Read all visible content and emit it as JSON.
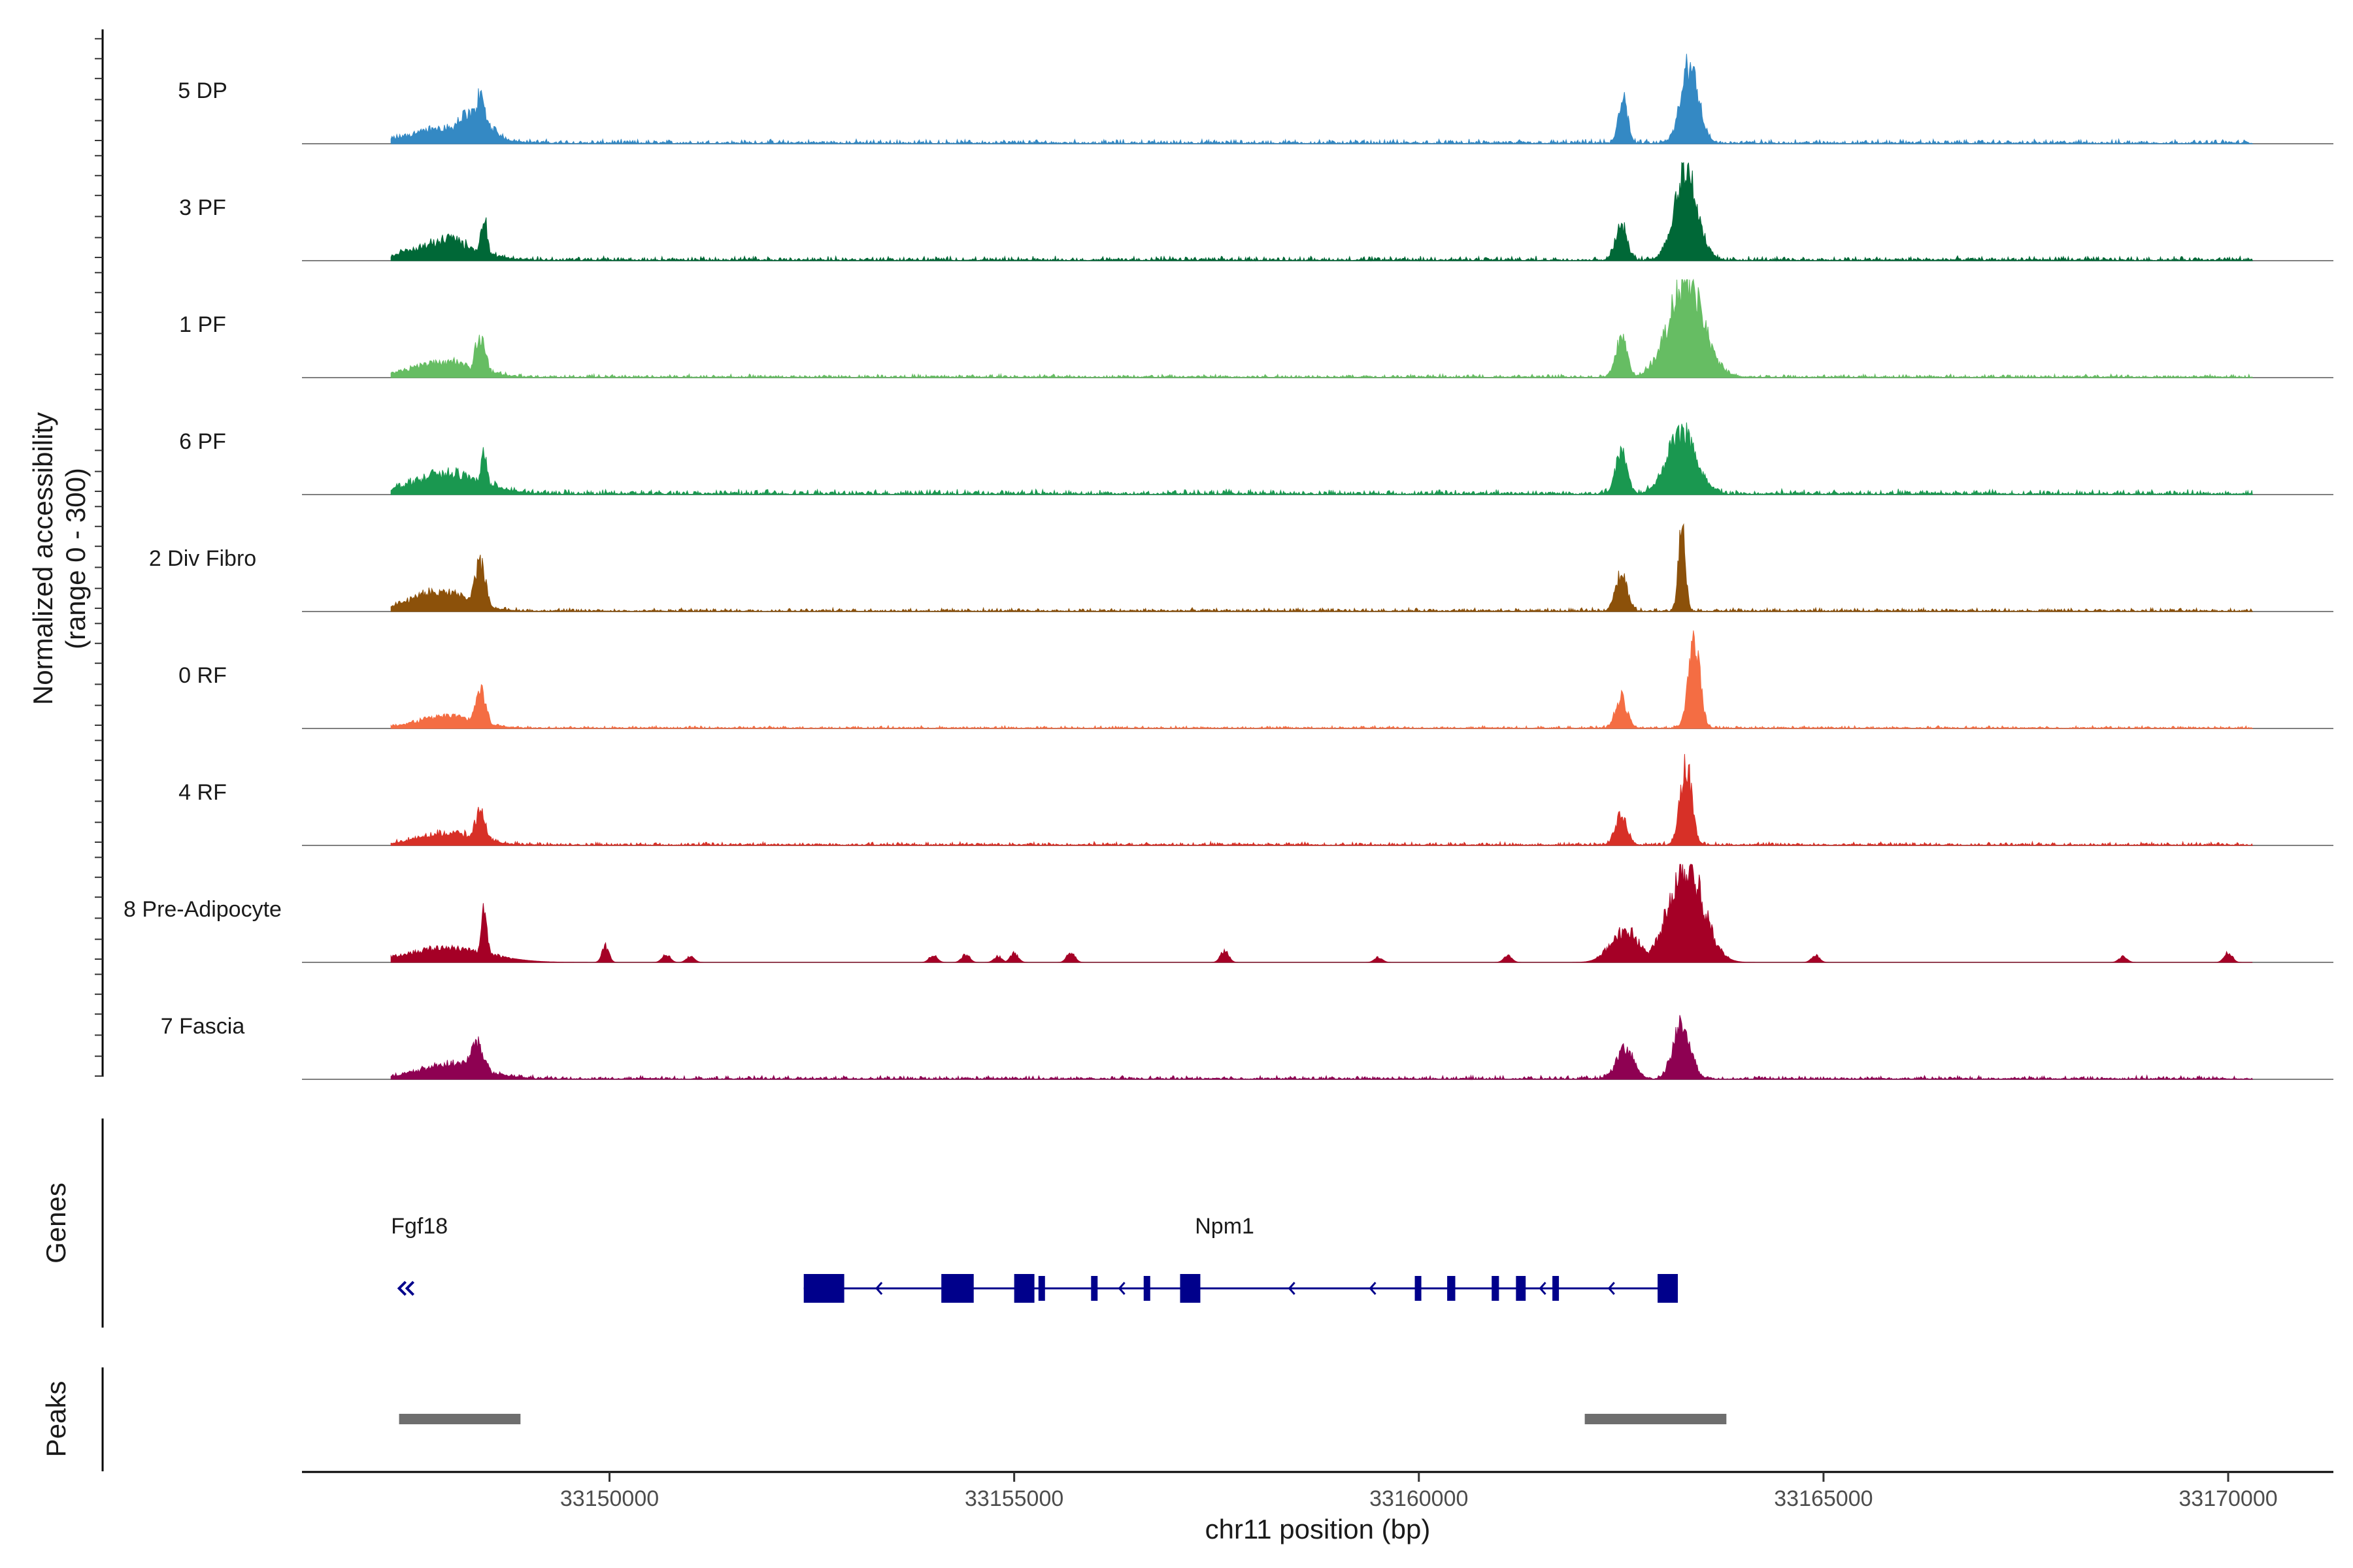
{
  "chart_data": {
    "type": "area",
    "title": "",
    "xlabel": "chr11 position (bp)",
    "ylabel_line1": "Normalized accessibility",
    "ylabel_line2": "(range 0 - 300)",
    "ylim": [
      0,
      300
    ],
    "xlim": [
      33146200,
      33171300
    ],
    "x_ticks": [
      33150000,
      33155000,
      33160000,
      33165000,
      33170000
    ],
    "x_tick_labels": [
      "33150000",
      "33155000",
      "33160000",
      "33165000",
      "33170000"
    ],
    "series": [
      {
        "name": "5 DP",
        "color": "#3489c4",
        "noise": 0.05,
        "peaks": [
          [
            33147400,
            33148600,
            0.15
          ],
          [
            33148000,
            33148600,
            0.3
          ],
          [
            33148300,
            33148500,
            0.48
          ],
          [
            33162450,
            33162600,
            0.48
          ],
          [
            33163200,
            33163500,
            0.8
          ]
        ],
        "spikes": []
      },
      {
        "name": "3 PF",
        "color": "#006837",
        "noise": 0.05,
        "peaks": [
          [
            33147400,
            33148500,
            0.18
          ],
          [
            33147800,
            33148300,
            0.22
          ],
          [
            33148400,
            33148500,
            0.42
          ],
          [
            33162400,
            33162600,
            0.35
          ],
          [
            33163100,
            33163500,
            0.9
          ]
        ],
        "spikes": []
      },
      {
        "name": "1 PF",
        "color": "#66bd63",
        "noise": 0.04,
        "peaks": [
          [
            33147400,
            33148500,
            0.15
          ],
          [
            33148300,
            33148500,
            0.4
          ],
          [
            33162400,
            33162600,
            0.4
          ],
          [
            33163000,
            33163600,
            0.95
          ]
        ],
        "spikes": []
      },
      {
        "name": "6 PF",
        "color": "#1a9850",
        "noise": 0.06,
        "peaks": [
          [
            33147400,
            33148600,
            0.2
          ],
          [
            33148400,
            33148500,
            0.42
          ],
          [
            33162400,
            33162600,
            0.4
          ],
          [
            33163000,
            33163500,
            0.62
          ]
        ],
        "spikes": []
      },
      {
        "name": "2 Div Fibro",
        "color": "#8c510a",
        "noise": 0.04,
        "peaks": [
          [
            33147400,
            33148400,
            0.2
          ],
          [
            33148300,
            33148500,
            0.48
          ],
          [
            33162400,
            33162600,
            0.38
          ],
          [
            33163200,
            33163300,
            0.9
          ]
        ],
        "spikes": []
      },
      {
        "name": "0 RF",
        "color": "#f46d43",
        "noise": 0.03,
        "peaks": [
          [
            33147500,
            33148500,
            0.12
          ],
          [
            33148300,
            33148500,
            0.38
          ],
          [
            33162400,
            33162600,
            0.3
          ],
          [
            33163300,
            33163500,
            0.9
          ]
        ],
        "spikes": []
      },
      {
        "name": "4 RF",
        "color": "#d73027",
        "noise": 0.04,
        "peaks": [
          [
            33147500,
            33148500,
            0.12
          ],
          [
            33148300,
            33148500,
            0.34
          ],
          [
            33162400,
            33162600,
            0.3
          ],
          [
            33163200,
            33163400,
            0.82
          ]
        ],
        "spikes": []
      },
      {
        "name": "8 Pre-Adipocyte",
        "color": "#a50026",
        "noise": 0.0,
        "peaks": [
          [
            33147300,
            33148700,
            0.15
          ],
          [
            33148400,
            33148500,
            0.5
          ],
          [
            33149900,
            33150000,
            0.16
          ],
          [
            33162300,
            33162800,
            0.32
          ],
          [
            33163000,
            33163600,
            1.0
          ]
        ],
        "spikes": [
          [
            33150700,
            0.08
          ],
          [
            33151000,
            0.06
          ],
          [
            33154000,
            0.07
          ],
          [
            33154400,
            0.08
          ],
          [
            33154800,
            0.06
          ],
          [
            33155000,
            0.09
          ],
          [
            33155700,
            0.1
          ],
          [
            33157600,
            0.12
          ],
          [
            33159500,
            0.05
          ],
          [
            33161100,
            0.07
          ],
          [
            33164900,
            0.07
          ],
          [
            33168700,
            0.06
          ],
          [
            33170000,
            0.1
          ]
        ]
      },
      {
        "name": "7 Fascia",
        "color": "#8e0152",
        "noise": 0.04,
        "peaks": [
          [
            33147500,
            33148600,
            0.15
          ],
          [
            33148200,
            33148500,
            0.35
          ],
          [
            33162400,
            33162700,
            0.3
          ],
          [
            33163100,
            33163400,
            0.55
          ]
        ],
        "spikes": []
      }
    ],
    "genes_panel_title": "Genes",
    "peaks_panel_title": "Peaks",
    "genes": [
      {
        "name": "Fgf18",
        "strand": "-",
        "label_x": 33147300,
        "arrow_x": 33147400
      },
      {
        "name": "Npm1",
        "strand": "-",
        "start": 33152400,
        "end": 33163200,
        "label_x": 33157600,
        "exons": [
          [
            33152400,
            33152900
          ],
          [
            33154100,
            33154500
          ],
          [
            33155000,
            33155250
          ],
          [
            33155300,
            33155380
          ],
          [
            33155950,
            33156030
          ],
          [
            33156600,
            33156680
          ],
          [
            33157050,
            33157300
          ],
          [
            33159950,
            33160010
          ],
          [
            33160350,
            33160450
          ],
          [
            33160900,
            33160990
          ],
          [
            33161200,
            33161320
          ],
          [
            33161650,
            33161720
          ],
          [
            33162950,
            33163200
          ]
        ],
        "arrows": [
          33153300,
          33156300,
          33158400,
          33159400,
          33161500,
          33162350
        ]
      }
    ],
    "peaks": [
      [
        33147400,
        33148900
      ],
      [
        33162050,
        33163800
      ]
    ]
  }
}
